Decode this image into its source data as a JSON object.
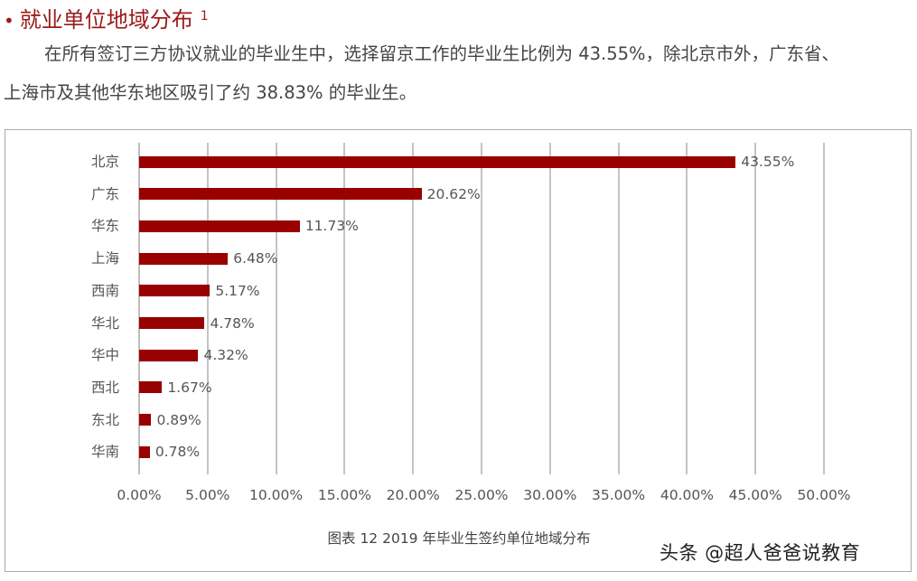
{
  "heading": {
    "bullet": "•",
    "title": "就业单位地域分布",
    "footnote_mark": "1"
  },
  "paragraph": {
    "line1": "在所有签订三方协议就业的毕业生中，选择留京工作的毕业生比例为 43.55%，除北京市外，广东省、",
    "line2": "上海市及其他华东地区吸引了约 38.83% 的毕业生。"
  },
  "colors": {
    "heading": "#9b1b1b",
    "bar": "#990000",
    "grid": "#c4c4c4"
  },
  "chart_data": {
    "type": "bar",
    "orientation": "horizontal",
    "title": "图表 12  2019 年毕业生签约单位地域分布",
    "xlabel": "",
    "ylabel": "",
    "categories": [
      "北京",
      "广东",
      "华东",
      "上海",
      "西南",
      "华北",
      "华中",
      "西北",
      "东北",
      "华南"
    ],
    "values": [
      43.55,
      20.62,
      11.73,
      6.48,
      5.17,
      4.78,
      4.32,
      1.67,
      0.89,
      0.78
    ],
    "value_labels": [
      "43.55%",
      "20.62%",
      "11.73%",
      "6.48%",
      "5.17%",
      "4.78%",
      "4.32%",
      "1.67%",
      "0.89%",
      "0.78%"
    ],
    "xlim": [
      0,
      50
    ],
    "x_ticks": [
      "0.00%",
      "5.00%",
      "10.00%",
      "15.00%",
      "20.00%",
      "25.00%",
      "30.00%",
      "35.00%",
      "40.00%",
      "45.00%",
      "50.00%"
    ],
    "grid": "vertical",
    "legend": "none"
  },
  "watermark": "头条 @超人爸爸说教育"
}
